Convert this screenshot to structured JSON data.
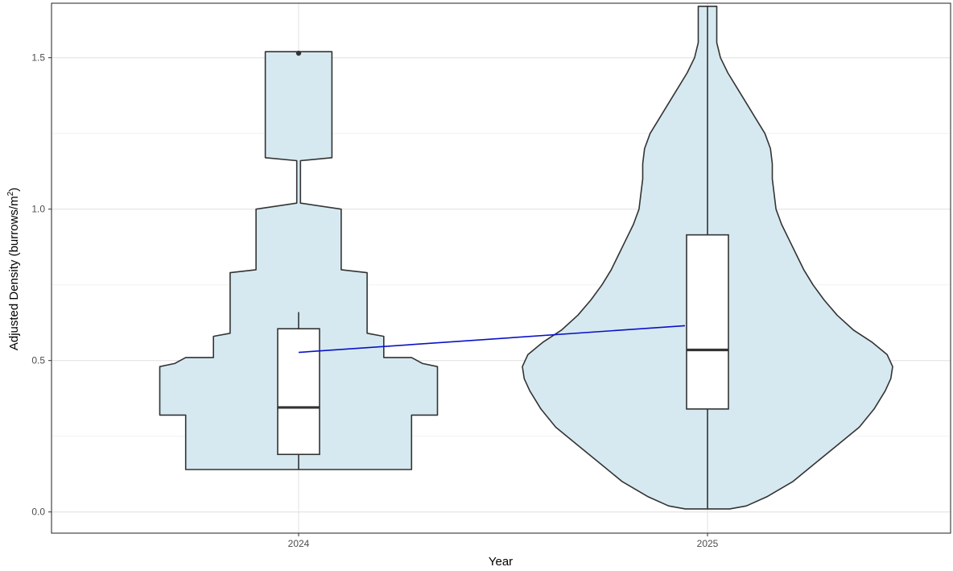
{
  "chart_data": {
    "type": "violin",
    "title": "",
    "xlabel": "Year",
    "ylabel_text": "Adjusted Density (burrows/m",
    "ylabel_superscript": "2",
    "ylabel_close": ")",
    "categories": [
      "2024",
      "2025"
    ],
    "ylim": [
      -0.07,
      1.68
    ],
    "y_ticks": [
      0.0,
      0.5,
      1.0,
      1.5
    ],
    "y_tick_labels": [
      "0.0",
      "0.5",
      "1.0",
      "1.5"
    ],
    "grid": true,
    "legend": "none",
    "fill_color": "#d6e9f0",
    "outline_color": "#333333",
    "mean_line_color": "#0a12c8",
    "violins": [
      {
        "category": "2024",
        "profile": [
          [
            0.14,
            0.61
          ],
          [
            0.32,
            0.61
          ],
          [
            0.32,
            0.75
          ],
          [
            0.48,
            0.75
          ],
          [
            0.49,
            0.67
          ],
          [
            0.51,
            0.61
          ],
          [
            0.51,
            0.46
          ],
          [
            0.58,
            0.46
          ],
          [
            0.59,
            0.37
          ],
          [
            0.79,
            0.37
          ],
          [
            0.8,
            0.23
          ],
          [
            1.0,
            0.23
          ],
          [
            1.02,
            0.01
          ],
          [
            1.16,
            0.01
          ],
          [
            1.17,
            0.18
          ],
          [
            1.52,
            0.18
          ]
        ]
      },
      {
        "category": "2025",
        "profile": [
          [
            0.01,
            0.12
          ],
          [
            0.02,
            0.21
          ],
          [
            0.05,
            0.32
          ],
          [
            0.1,
            0.46
          ],
          [
            0.16,
            0.58
          ],
          [
            0.22,
            0.7
          ],
          [
            0.28,
            0.82
          ],
          [
            0.34,
            0.9
          ],
          [
            0.4,
            0.96
          ],
          [
            0.44,
            0.99
          ],
          [
            0.48,
            1.0
          ],
          [
            0.52,
            0.97
          ],
          [
            0.56,
            0.89
          ],
          [
            0.6,
            0.79
          ],
          [
            0.65,
            0.7
          ],
          [
            0.7,
            0.63
          ],
          [
            0.75,
            0.57
          ],
          [
            0.8,
            0.52
          ],
          [
            0.85,
            0.48
          ],
          [
            0.9,
            0.44
          ],
          [
            0.95,
            0.4
          ],
          [
            1.0,
            0.37
          ],
          [
            1.05,
            0.36
          ],
          [
            1.1,
            0.35
          ],
          [
            1.15,
            0.35
          ],
          [
            1.2,
            0.34
          ],
          [
            1.25,
            0.31
          ],
          [
            1.3,
            0.26
          ],
          [
            1.35,
            0.21
          ],
          [
            1.4,
            0.16
          ],
          [
            1.45,
            0.11
          ],
          [
            1.5,
            0.07
          ],
          [
            1.55,
            0.05
          ],
          [
            1.6,
            0.05
          ],
          [
            1.67,
            0.05
          ]
        ]
      }
    ],
    "boxes": [
      {
        "category": "2024",
        "whisker_low": 0.14,
        "q1": 0.19,
        "median": 0.345,
        "q3": 0.605,
        "whisker_high": 0.66,
        "outliers": [
          1.515
        ]
      },
      {
        "category": "2025",
        "whisker_low": 0.01,
        "q1": 0.34,
        "median": 0.535,
        "q3": 0.915,
        "whisker_high": 1.67,
        "outliers": []
      }
    ],
    "mean_line": {
      "points": [
        {
          "category": "2024",
          "y": 0.527
        },
        {
          "category": "2025",
          "y": 0.617
        }
      ]
    }
  }
}
